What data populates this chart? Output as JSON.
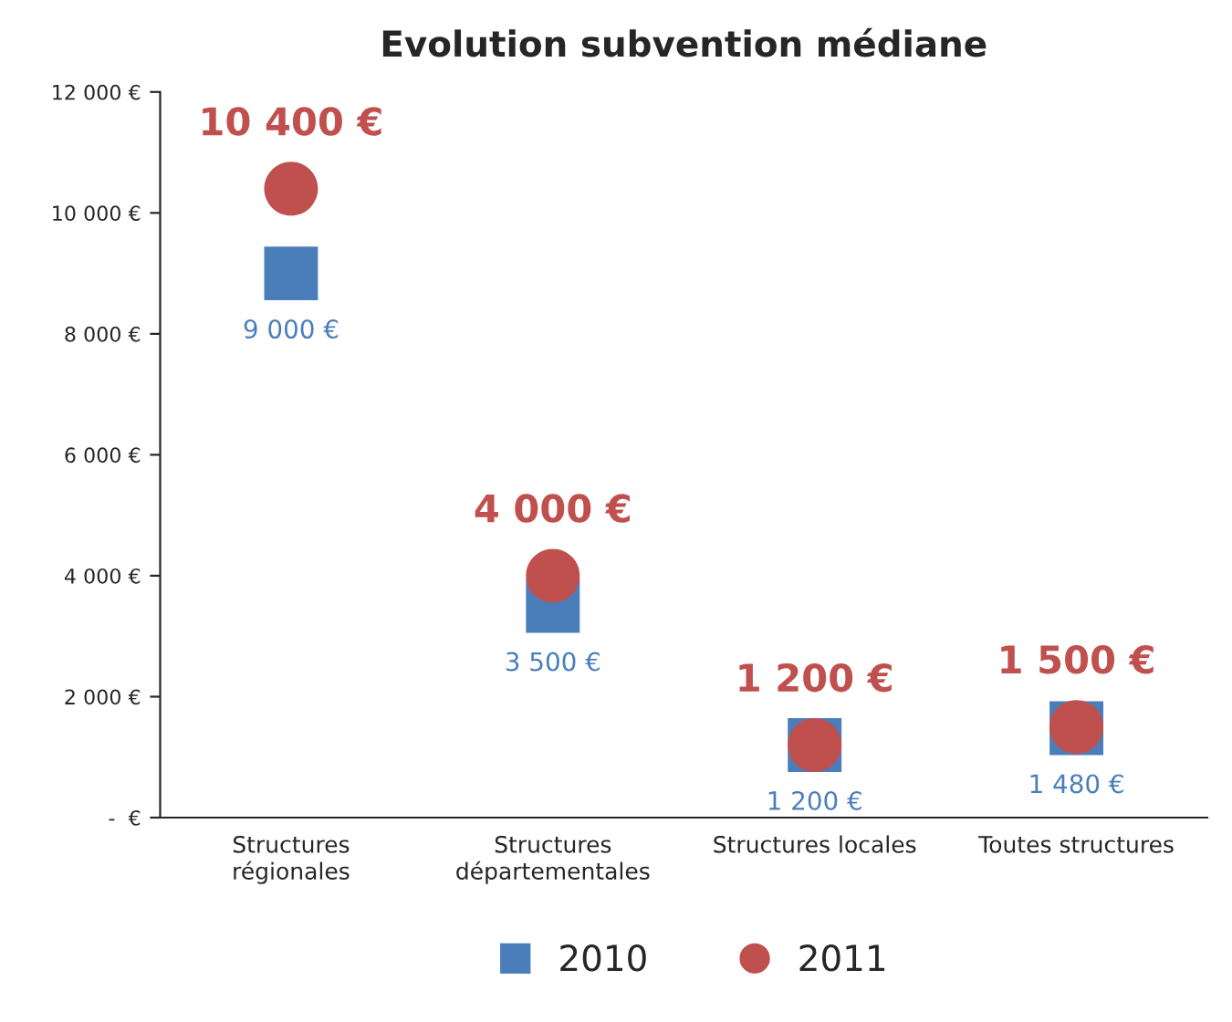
{
  "chart_data": {
    "type": "scatter",
    "title": "Evolution subvention médiane",
    "categories": [
      "Structures\nrégionales",
      "Structures\ndépartementales",
      "Structures locales",
      "Toutes structures"
    ],
    "series": [
      {
        "name": "2010",
        "color": "#4a7ebb",
        "marker": "square",
        "values": [
          9000,
          3500,
          1200,
          1480
        ],
        "value_labels": [
          "9 000 €",
          "3 500 €",
          "1 200 €",
          "1 480 €"
        ]
      },
      {
        "name": "2011",
        "color": "#c0504d",
        "marker": "circle",
        "values": [
          10400,
          4000,
          1200,
          1500
        ],
        "value_labels": [
          "10 400 €",
          "4 000 €",
          "1 200 €",
          "1 500 €"
        ]
      }
    ],
    "ylim": [
      0,
      12000
    ],
    "yticks": [
      {
        "value": 0,
        "label": "-  €"
      },
      {
        "value": 2000,
        "label": "2 000 €"
      },
      {
        "value": 4000,
        "label": "4 000 €"
      },
      {
        "value": 6000,
        "label": "6 000 €"
      },
      {
        "value": 8000,
        "label": "8 000 €"
      },
      {
        "value": 10000,
        "label": "10 000 €"
      },
      {
        "value": 12000,
        "label": "12 000 €"
      }
    ],
    "grid": false,
    "legend": "bottom"
  }
}
